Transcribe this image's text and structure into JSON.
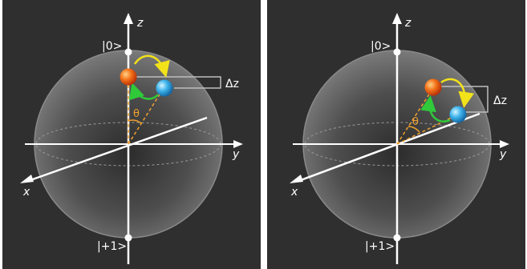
{
  "panels": [
    {
      "id": "left",
      "labels": {
        "z_axis": "z",
        "y_axis": "y",
        "x_axis": "x",
        "ket_zero": "|0>",
        "ket_one": "|+1>",
        "theta": "θ",
        "delta_z": "Δz"
      }
    },
    {
      "id": "right",
      "labels": {
        "z_axis": "z",
        "y_axis": "y",
        "x_axis": "x",
        "ket_zero": "|0>",
        "ket_one": "|+1>",
        "theta": "θ",
        "delta_z": "Δz"
      }
    }
  ],
  "colors": {
    "background": "#2f2f2f",
    "sphere": "#6a6a6a",
    "axis": "#ffffff",
    "bracket": "#bdbdbd",
    "dashed_cone": "#f0a030",
    "arrow_yellow": "#f2e21a",
    "arrow_green": "#2fc93a",
    "ball_orange": "#f25a12",
    "ball_blue": "#2ea8e6"
  }
}
